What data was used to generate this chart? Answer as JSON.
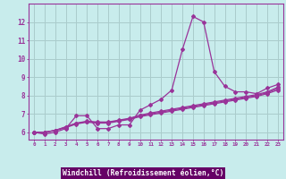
{
  "xlabel": "Windchill (Refroidissement éolien,°C)",
  "background_color": "#c8ecec",
  "grid_color": "#aacccc",
  "line_color": "#993399",
  "x": [
    0,
    1,
    2,
    3,
    4,
    5,
    6,
    7,
    8,
    9,
    10,
    11,
    12,
    13,
    14,
    15,
    16,
    17,
    18,
    19,
    20,
    21,
    22,
    23
  ],
  "line1": [
    6.0,
    5.9,
    6.0,
    6.2,
    6.9,
    6.9,
    6.2,
    6.2,
    6.4,
    6.4,
    7.2,
    7.5,
    7.8,
    8.3,
    10.5,
    12.3,
    12.0,
    9.3,
    8.5,
    8.2,
    8.2,
    8.1,
    8.4,
    8.6
  ],
  "line2": [
    6.0,
    6.0,
    6.1,
    6.25,
    6.45,
    6.55,
    6.5,
    6.5,
    6.6,
    6.7,
    6.85,
    6.95,
    7.05,
    7.15,
    7.25,
    7.35,
    7.45,
    7.55,
    7.65,
    7.75,
    7.85,
    7.95,
    8.1,
    8.3
  ],
  "line3": [
    6.0,
    6.0,
    6.1,
    6.28,
    6.48,
    6.58,
    6.53,
    6.53,
    6.63,
    6.73,
    6.9,
    7.0,
    7.1,
    7.2,
    7.3,
    7.4,
    7.5,
    7.6,
    7.7,
    7.8,
    7.9,
    8.0,
    8.15,
    8.38
  ],
  "line4": [
    6.0,
    6.0,
    6.1,
    6.3,
    6.5,
    6.6,
    6.56,
    6.56,
    6.66,
    6.76,
    6.93,
    7.05,
    7.15,
    7.25,
    7.35,
    7.45,
    7.55,
    7.65,
    7.75,
    7.85,
    7.95,
    8.05,
    8.2,
    8.45
  ],
  "ylim": [
    5.6,
    13.0
  ],
  "yticks": [
    6,
    7,
    8,
    9,
    10,
    11,
    12
  ],
  "xlim": [
    -0.5,
    23.5
  ],
  "marker_size": 2.0,
  "line_width": 0.9,
  "font_color": "#993399",
  "xlabel_bg": "#660066",
  "xlabel_fg": "#ffffff"
}
